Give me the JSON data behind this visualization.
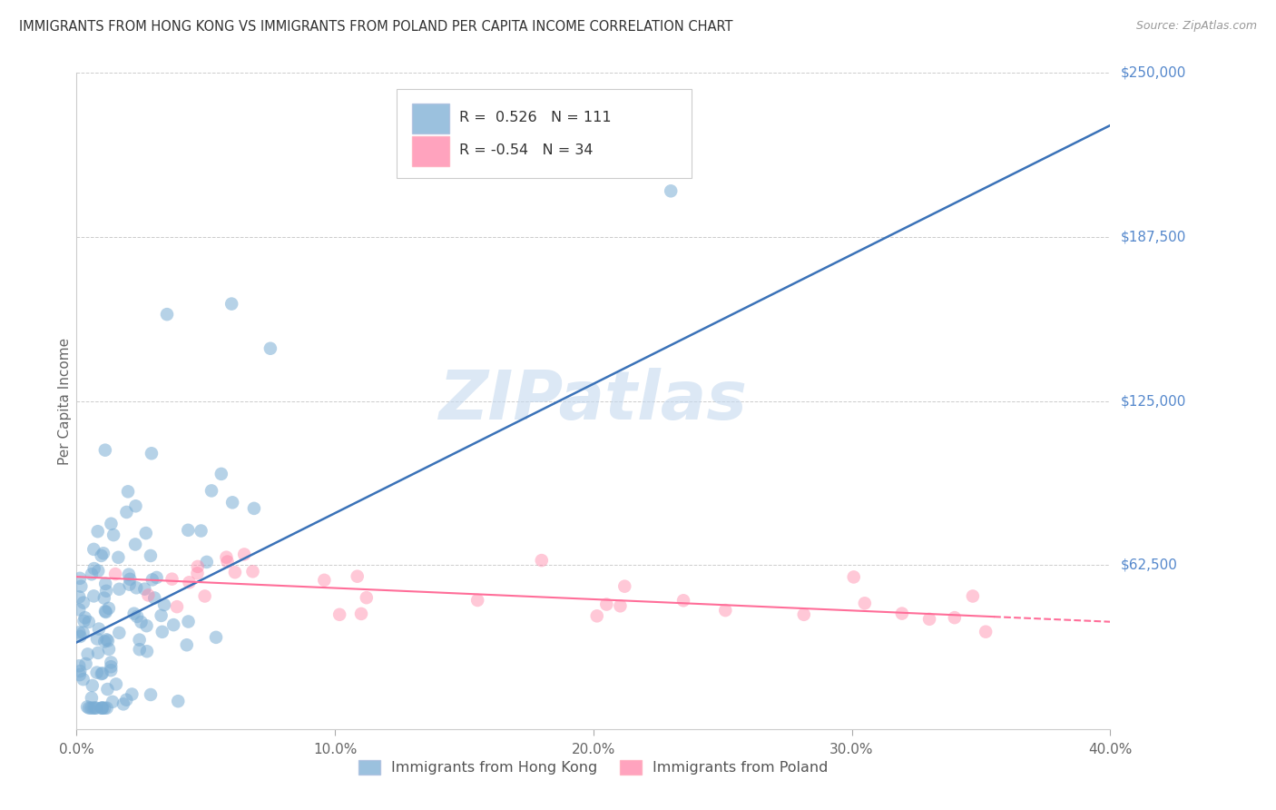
{
  "title": "IMMIGRANTS FROM HONG KONG VS IMMIGRANTS FROM POLAND PER CAPITA INCOME CORRELATION CHART",
  "source": "Source: ZipAtlas.com",
  "ylabel": "Per Capita Income",
  "xlim": [
    0.0,
    0.4
  ],
  "ylim": [
    0,
    250000
  ],
  "yticks": [
    0,
    62500,
    125000,
    187500,
    250000
  ],
  "ytick_labels": [
    "",
    "$62,500",
    "$125,000",
    "$187,500",
    "$250,000"
  ],
  "xticks": [
    0.0,
    0.1,
    0.2,
    0.3,
    0.4
  ],
  "xtick_labels": [
    "0.0%",
    "10.0%",
    "20.0%",
    "30.0%",
    "40.0%"
  ],
  "hk_R": 0.526,
  "hk_N": 111,
  "poland_R": -0.54,
  "poland_N": 34,
  "hk_color": "#7AADD4",
  "poland_color": "#FF85A8",
  "hk_line_color": "#3A72B8",
  "poland_line_color": "#FF6E99",
  "background_color": "#FFFFFF",
  "grid_color": "#CCCCCC",
  "title_color": "#333333",
  "axis_label_color": "#666666",
  "ytick_color": "#5588CC",
  "watermark_color": "#C5D9EF",
  "legend_hk_label": "Immigrants from Hong Kong",
  "legend_poland_label": "Immigrants from Poland"
}
